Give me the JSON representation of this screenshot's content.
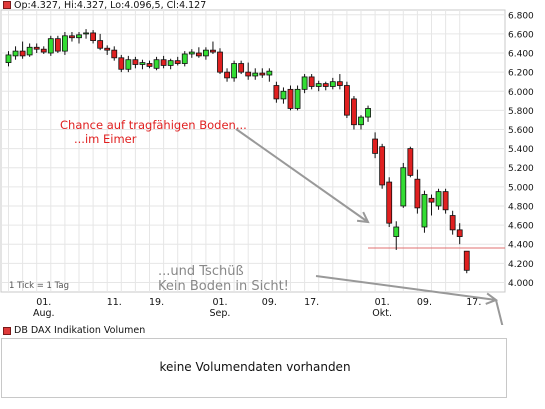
{
  "header": {
    "ohlc_text": "Op:4.327, Hi:4.327, Lo:4.096,5, Cl:4.127"
  },
  "annotations": {
    "chance_line1": "Chance auf tragfähigen Boden...",
    "chance_line2": "...im Eimer",
    "tschuess_line1": "...und Tschüß",
    "tschuess_line2": "Kein Boden in Sicht!",
    "tick_info": "1 Tick = 1 Tag"
  },
  "volume": {
    "title": "DB DAX Indikation Volumen",
    "message": "keine Volumendaten vorhanden"
  },
  "colors": {
    "up": "#33dd33",
    "down": "#e02020",
    "annotation_text": "#e02020",
    "gray_text": "#888888",
    "arrow": "#999999",
    "support_line": "#e07070"
  },
  "chart_data": {
    "type": "candlestick",
    "ylim": [
      3.9,
      6.85
    ],
    "y_ticks": [
      "6.800",
      "6.600",
      "6.400",
      "6.200",
      "6.000",
      "5.800",
      "5.600",
      "5.400",
      "5.200",
      "5.000",
      "4.800",
      "4.600",
      "4.400",
      "4.200",
      "4.000"
    ],
    "x_ticks": [
      {
        "i": 5,
        "label": "01.",
        "sub": "Aug."
      },
      {
        "i": 15,
        "label": "11.",
        "sub": ""
      },
      {
        "i": 21,
        "label": "19.",
        "sub": ""
      },
      {
        "i": 30,
        "label": "01.",
        "sub": "Sep."
      },
      {
        "i": 37,
        "label": "09.",
        "sub": ""
      },
      {
        "i": 43,
        "label": "17.",
        "sub": ""
      },
      {
        "i": 53,
        "label": "01.",
        "sub": "Okt."
      },
      {
        "i": 59,
        "label": "09.",
        "sub": ""
      },
      {
        "i": 66,
        "label": "17.",
        "sub": ""
      }
    ],
    "support_level": 4.36,
    "candles": [
      {
        "o": 6.3,
        "h": 6.42,
        "l": 6.26,
        "c": 6.38
      },
      {
        "o": 6.37,
        "h": 6.47,
        "l": 6.33,
        "c": 6.42
      },
      {
        "o": 6.42,
        "h": 6.52,
        "l": 6.34,
        "c": 6.37
      },
      {
        "o": 6.38,
        "h": 6.5,
        "l": 6.36,
        "c": 6.46
      },
      {
        "o": 6.46,
        "h": 6.5,
        "l": 6.4,
        "c": 6.44
      },
      {
        "o": 6.44,
        "h": 6.47,
        "l": 6.39,
        "c": 6.41
      },
      {
        "o": 6.4,
        "h": 6.58,
        "l": 6.37,
        "c": 6.55
      },
      {
        "o": 6.55,
        "h": 6.58,
        "l": 6.4,
        "c": 6.42
      },
      {
        "o": 6.42,
        "h": 6.62,
        "l": 6.38,
        "c": 6.58
      },
      {
        "o": 6.58,
        "h": 6.62,
        "l": 6.52,
        "c": 6.56
      },
      {
        "o": 6.56,
        "h": 6.62,
        "l": 6.5,
        "c": 6.59
      },
      {
        "o": 6.6,
        "h": 6.65,
        "l": 6.55,
        "c": 6.61
      },
      {
        "o": 6.61,
        "h": 6.64,
        "l": 6.5,
        "c": 6.53
      },
      {
        "o": 6.53,
        "h": 6.6,
        "l": 6.43,
        "c": 6.45
      },
      {
        "o": 6.45,
        "h": 6.48,
        "l": 6.38,
        "c": 6.43
      },
      {
        "o": 6.43,
        "h": 6.47,
        "l": 6.32,
        "c": 6.35
      },
      {
        "o": 6.35,
        "h": 6.38,
        "l": 6.2,
        "c": 6.23
      },
      {
        "o": 6.23,
        "h": 6.37,
        "l": 6.2,
        "c": 6.33
      },
      {
        "o": 6.33,
        "h": 6.36,
        "l": 6.24,
        "c": 6.28
      },
      {
        "o": 6.28,
        "h": 6.33,
        "l": 6.23,
        "c": 6.3
      },
      {
        "o": 6.29,
        "h": 6.32,
        "l": 6.24,
        "c": 6.26
      },
      {
        "o": 6.24,
        "h": 6.36,
        "l": 6.22,
        "c": 6.33
      },
      {
        "o": 6.33,
        "h": 6.37,
        "l": 6.24,
        "c": 6.27
      },
      {
        "o": 6.27,
        "h": 6.34,
        "l": 6.23,
        "c": 6.32
      },
      {
        "o": 6.32,
        "h": 6.36,
        "l": 6.27,
        "c": 6.29
      },
      {
        "o": 6.29,
        "h": 6.42,
        "l": 6.26,
        "c": 6.39
      },
      {
        "o": 6.39,
        "h": 6.44,
        "l": 6.35,
        "c": 6.41
      },
      {
        "o": 6.4,
        "h": 6.46,
        "l": 6.35,
        "c": 6.37
      },
      {
        "o": 6.37,
        "h": 6.46,
        "l": 6.33,
        "c": 6.43
      },
      {
        "o": 6.43,
        "h": 6.52,
        "l": 6.39,
        "c": 6.41
      },
      {
        "o": 6.41,
        "h": 6.45,
        "l": 6.18,
        "c": 6.2
      },
      {
        "o": 6.2,
        "h": 6.24,
        "l": 6.1,
        "c": 6.14
      },
      {
        "o": 6.14,
        "h": 6.32,
        "l": 6.1,
        "c": 6.29
      },
      {
        "o": 6.29,
        "h": 6.32,
        "l": 6.18,
        "c": 6.2
      },
      {
        "o": 6.2,
        "h": 6.3,
        "l": 6.12,
        "c": 6.16
      },
      {
        "o": 6.16,
        "h": 6.24,
        "l": 6.12,
        "c": 6.19
      },
      {
        "o": 6.19,
        "h": 6.24,
        "l": 6.14,
        "c": 6.17
      },
      {
        "o": 6.17,
        "h": 6.24,
        "l": 6.1,
        "c": 6.21
      },
      {
        "o": 6.06,
        "h": 6.1,
        "l": 5.88,
        "c": 5.92
      },
      {
        "o": 5.92,
        "h": 6.04,
        "l": 5.87,
        "c": 6.0
      },
      {
        "o": 6.02,
        "h": 6.06,
        "l": 5.8,
        "c": 5.82
      },
      {
        "o": 5.82,
        "h": 6.06,
        "l": 5.8,
        "c": 6.02
      },
      {
        "o": 6.02,
        "h": 6.18,
        "l": 5.98,
        "c": 6.15
      },
      {
        "o": 6.15,
        "h": 6.18,
        "l": 6.02,
        "c": 6.05
      },
      {
        "o": 6.05,
        "h": 6.11,
        "l": 6.0,
        "c": 6.08
      },
      {
        "o": 6.08,
        "h": 6.1,
        "l": 6.01,
        "c": 6.05
      },
      {
        "o": 6.05,
        "h": 6.14,
        "l": 6.02,
        "c": 6.1
      },
      {
        "o": 6.1,
        "h": 6.18,
        "l": 6.02,
        "c": 6.06
      },
      {
        "o": 6.06,
        "h": 6.1,
        "l": 5.72,
        "c": 5.75
      },
      {
        "o": 5.92,
        "h": 5.95,
        "l": 5.6,
        "c": 5.65
      },
      {
        "o": 5.65,
        "h": 5.75,
        "l": 5.6,
        "c": 5.73
      },
      {
        "o": 5.73,
        "h": 5.85,
        "l": 5.68,
        "c": 5.82
      },
      {
        "o": 5.5,
        "h": 5.57,
        "l": 5.3,
        "c": 5.35
      },
      {
        "o": 5.42,
        "h": 5.45,
        "l": 4.98,
        "c": 5.02
      },
      {
        "o": 5.05,
        "h": 5.1,
        "l": 4.58,
        "c": 4.62
      },
      {
        "o": 4.48,
        "h": 4.64,
        "l": 4.34,
        "c": 4.58
      },
      {
        "o": 4.8,
        "h": 5.25,
        "l": 4.78,
        "c": 5.2
      },
      {
        "o": 5.4,
        "h": 5.42,
        "l": 5.1,
        "c": 5.12
      },
      {
        "o": 5.08,
        "h": 5.18,
        "l": 4.72,
        "c": 4.78
      },
      {
        "o": 4.58,
        "h": 4.96,
        "l": 4.52,
        "c": 4.92
      },
      {
        "o": 4.88,
        "h": 4.92,
        "l": 4.7,
        "c": 4.84
      },
      {
        "o": 4.8,
        "h": 4.98,
        "l": 4.76,
        "c": 4.95
      },
      {
        "o": 4.95,
        "h": 4.98,
        "l": 4.72,
        "c": 4.76
      },
      {
        "o": 4.7,
        "h": 4.75,
        "l": 4.5,
        "c": 4.55
      },
      {
        "o": 4.55,
        "h": 4.62,
        "l": 4.4,
        "c": 4.48
      },
      {
        "o": 4.327,
        "h": 4.327,
        "l": 4.0965,
        "c": 4.127
      }
    ]
  }
}
